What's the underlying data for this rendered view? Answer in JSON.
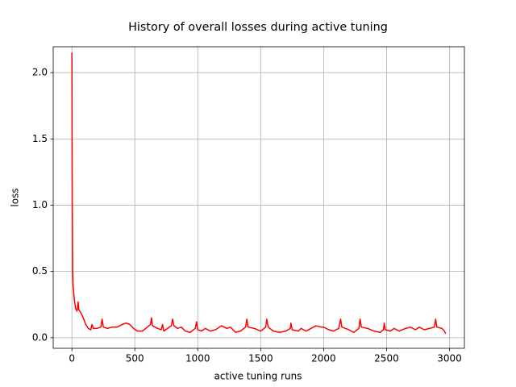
{
  "chart_data": {
    "type": "line",
    "title": "History of overall losses during active tuning",
    "xlabel": "active tuning runs",
    "ylabel": "loss",
    "color": "#ff0000",
    "grid": true,
    "xlim": [
      -148.5,
      3118.5
    ],
    "ylim": [
      -0.08,
      2.195
    ],
    "xticks": [
      0,
      500,
      1000,
      1500,
      2000,
      2500,
      3000
    ],
    "yticks": [
      {
        "value": 0,
        "label": "0.0"
      },
      0.5,
      {
        "value": 1,
        "label": "1.0"
      },
      1.5,
      {
        "value": 2,
        "label": "2.0"
      }
    ],
    "x": [
      0,
      3,
      6,
      10,
      20,
      30,
      40,
      50,
      55,
      70,
      90,
      110,
      130,
      150,
      160,
      170,
      200,
      230,
      240,
      250,
      280,
      320,
      360,
      400,
      430,
      460,
      490,
      520,
      560,
      600,
      625,
      632,
      640,
      680,
      710,
      720,
      730,
      760,
      790,
      800,
      810,
      840,
      870,
      900,
      940,
      980,
      990,
      1000,
      1030,
      1060,
      1100,
      1140,
      1190,
      1230,
      1260,
      1300,
      1340,
      1380,
      1390,
      1400,
      1450,
      1500,
      1540,
      1548,
      1560,
      1600,
      1650,
      1700,
      1735,
      1740,
      1750,
      1800,
      1820,
      1860,
      1900,
      1940,
      1980,
      2000,
      2040,
      2080,
      2120,
      2135,
      2145,
      2200,
      2240,
      2280,
      2290,
      2300,
      2350,
      2400,
      2450,
      2475,
      2482,
      2490,
      2530,
      2560,
      2600,
      2650,
      2690,
      2730,
      2760,
      2800,
      2840,
      2880,
      2890,
      2900,
      2940,
      2960,
      2969
    ],
    "values": [
      2.15,
      1.0,
      0.5,
      0.38,
      0.28,
      0.22,
      0.2,
      0.27,
      0.21,
      0.19,
      0.15,
      0.1,
      0.07,
      0.06,
      0.1,
      0.07,
      0.07,
      0.08,
      0.14,
      0.08,
      0.07,
      0.08,
      0.08,
      0.1,
      0.11,
      0.1,
      0.07,
      0.05,
      0.05,
      0.08,
      0.1,
      0.15,
      0.09,
      0.07,
      0.06,
      0.1,
      0.05,
      0.07,
      0.09,
      0.14,
      0.09,
      0.07,
      0.08,
      0.05,
      0.04,
      0.07,
      0.12,
      0.06,
      0.05,
      0.07,
      0.05,
      0.06,
      0.09,
      0.07,
      0.08,
      0.04,
      0.05,
      0.08,
      0.14,
      0.08,
      0.07,
      0.05,
      0.08,
      0.14,
      0.08,
      0.05,
      0.04,
      0.05,
      0.07,
      0.11,
      0.06,
      0.05,
      0.07,
      0.05,
      0.07,
      0.09,
      0.08,
      0.08,
      0.06,
      0.05,
      0.07,
      0.14,
      0.08,
      0.06,
      0.04,
      0.07,
      0.14,
      0.08,
      0.07,
      0.05,
      0.04,
      0.06,
      0.11,
      0.06,
      0.05,
      0.07,
      0.05,
      0.07,
      0.08,
      0.06,
      0.08,
      0.06,
      0.07,
      0.08,
      0.14,
      0.08,
      0.07,
      0.05,
      0.03
    ]
  }
}
